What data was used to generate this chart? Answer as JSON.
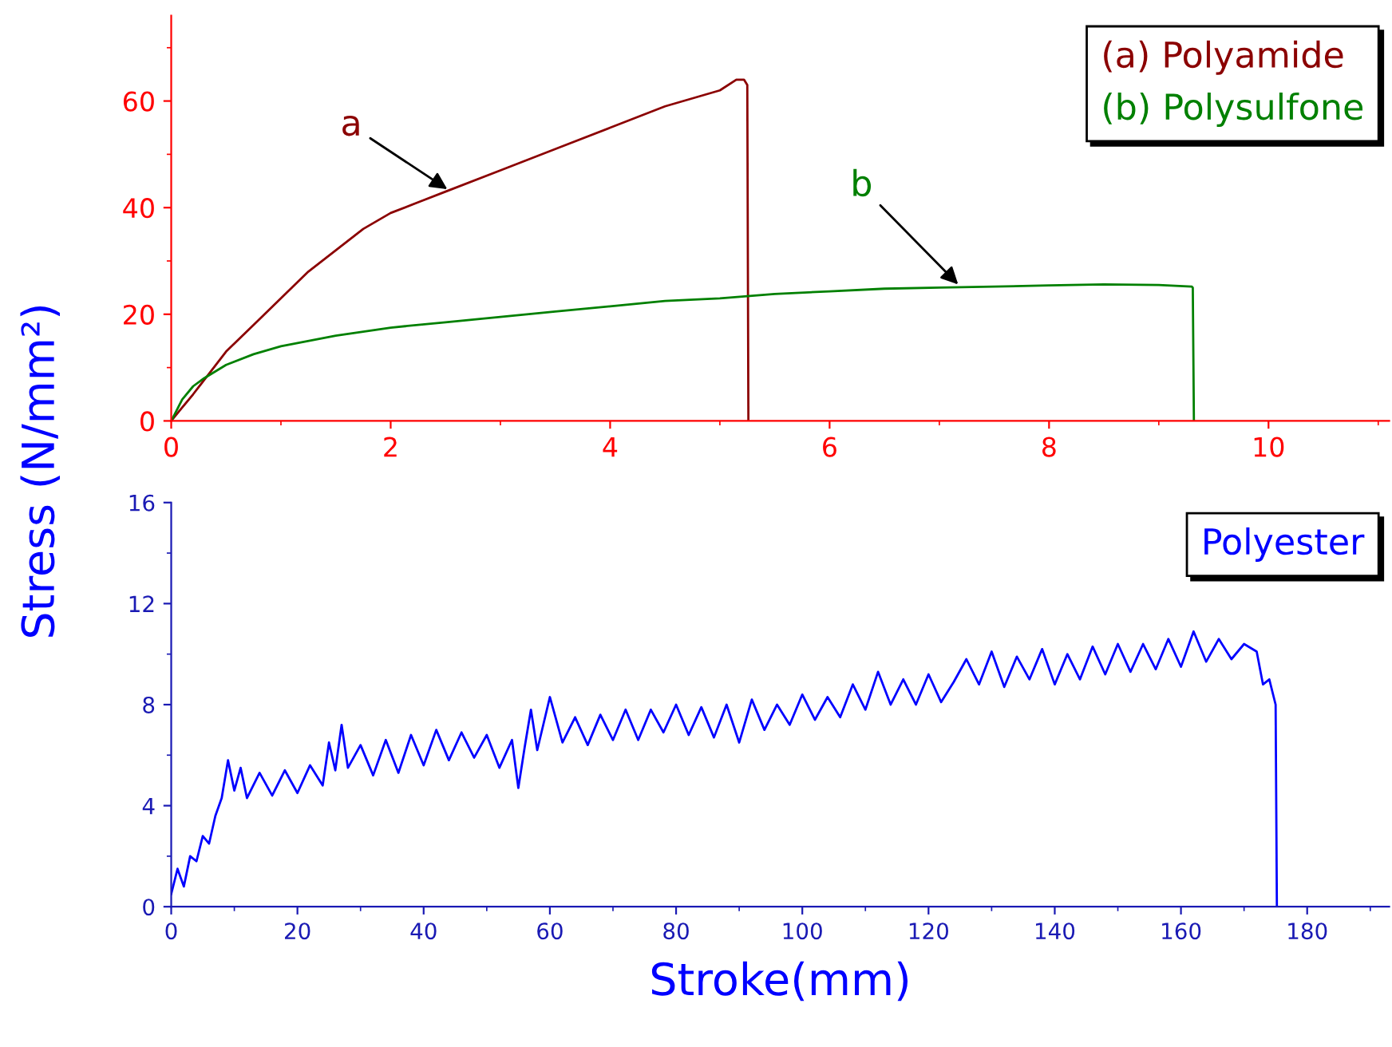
{
  "chart_data": [
    {
      "type": "line",
      "ylabel": "Stress (N/mm²)",
      "xlim": [
        0,
        11.1
      ],
      "ylim": [
        0,
        76
      ],
      "xticks": [
        0,
        2,
        4,
        6,
        8,
        10
      ],
      "yticks": [
        0,
        20,
        40,
        60
      ],
      "legend": "top right",
      "grid": false,
      "series": [
        {
          "name": "(a) Polyamide",
          "color": "#8b0000",
          "x": [
            0,
            0.1,
            0.2,
            0.35,
            0.5,
            0.75,
            1,
            1.25,
            1.5,
            1.75,
            2,
            2.25,
            2.5,
            3,
            3.5,
            4,
            4.5,
            5,
            5.15,
            5.22,
            5.25,
            5.26
          ],
          "values": [
            0,
            2.5,
            5,
            9,
            13,
            18,
            23,
            28,
            32,
            36,
            39,
            41,
            43,
            47,
            51,
            55,
            59,
            62,
            64,
            64,
            63,
            0
          ]
        },
        {
          "name": "(b) Polysulfone",
          "color": "#008000",
          "x": [
            0,
            0.05,
            0.1,
            0.2,
            0.3,
            0.5,
            0.75,
            1,
            1.5,
            2,
            2.5,
            3,
            3.5,
            4,
            4.5,
            5,
            5.5,
            6,
            6.5,
            7,
            7.5,
            8,
            8.5,
            9,
            9.3,
            9.31,
            9.32
          ],
          "values": [
            0,
            2,
            4,
            6.5,
            8,
            10.5,
            12.5,
            14,
            16,
            17.5,
            18.5,
            19.5,
            20.5,
            21.5,
            22.5,
            23,
            23.8,
            24.3,
            24.8,
            25,
            25.2,
            25.4,
            25.6,
            25.5,
            25.2,
            25,
            0
          ]
        }
      ],
      "annotations": [
        {
          "text": "a",
          "x": 2.55,
          "y": 43
        },
        {
          "text": "b",
          "x": 7.2,
          "y": 25
        }
      ]
    },
    {
      "type": "line",
      "xlabel": "Stroke(mm)",
      "xlim": [
        0,
        193
      ],
      "ylim": [
        0,
        16
      ],
      "xticks": [
        0,
        20,
        40,
        60,
        80,
        100,
        120,
        140,
        160,
        180
      ],
      "yticks": [
        0,
        4,
        8,
        12,
        16
      ],
      "legend": "top right",
      "grid": false,
      "series": [
        {
          "name": "Polyester",
          "color": "#0000ff",
          "x": [
            0,
            1,
            2,
            3,
            4,
            5,
            6,
            7,
            8,
            9,
            10,
            11,
            12,
            14,
            16,
            18,
            20,
            22,
            24,
            25,
            26,
            27,
            28,
            30,
            32,
            34,
            36,
            38,
            40,
            42,
            44,
            46,
            48,
            50,
            52,
            54,
            55,
            56,
            57,
            58,
            60,
            62,
            64,
            66,
            68,
            70,
            72,
            74,
            76,
            78,
            80,
            82,
            84,
            86,
            88,
            90,
            92,
            94,
            96,
            98,
            100,
            102,
            104,
            106,
            108,
            110,
            112,
            114,
            116,
            118,
            120,
            122,
            124,
            126,
            128,
            130,
            132,
            134,
            136,
            138,
            140,
            142,
            144,
            146,
            148,
            150,
            152,
            154,
            156,
            158,
            160,
            162,
            164,
            166,
            168,
            170,
            172,
            173,
            174,
            175,
            175.2
          ],
          "values": [
            0.5,
            1.5,
            0.8,
            2.0,
            1.8,
            2.8,
            2.5,
            3.6,
            4.3,
            5.8,
            4.6,
            5.5,
            4.3,
            5.3,
            4.4,
            5.4,
            4.5,
            5.6,
            4.8,
            6.5,
            5.4,
            7.2,
            5.5,
            6.4,
            5.2,
            6.6,
            5.3,
            6.8,
            5.6,
            7.0,
            5.8,
            6.9,
            5.9,
            6.8,
            5.5,
            6.6,
            4.7,
            6.3,
            7.8,
            6.2,
            8.3,
            6.5,
            7.5,
            6.4,
            7.6,
            6.6,
            7.8,
            6.6,
            7.8,
            6.9,
            8.0,
            6.8,
            7.9,
            6.7,
            8.0,
            6.5,
            8.2,
            7.0,
            8.0,
            7.2,
            8.4,
            7.4,
            8.3,
            7.5,
            8.8,
            7.8,
            9.3,
            8.0,
            9.0,
            8.0,
            9.2,
            8.1,
            8.9,
            9.8,
            8.8,
            10.1,
            8.7,
            9.9,
            9.0,
            10.2,
            8.8,
            10.0,
            9.0,
            10.3,
            9.2,
            10.4,
            9.3,
            10.4,
            9.4,
            10.6,
            9.5,
            10.9,
            9.7,
            10.6,
            9.8,
            10.4,
            10.1,
            8.8,
            9.0,
            8.0,
            0
          ]
        }
      ]
    }
  ]
}
